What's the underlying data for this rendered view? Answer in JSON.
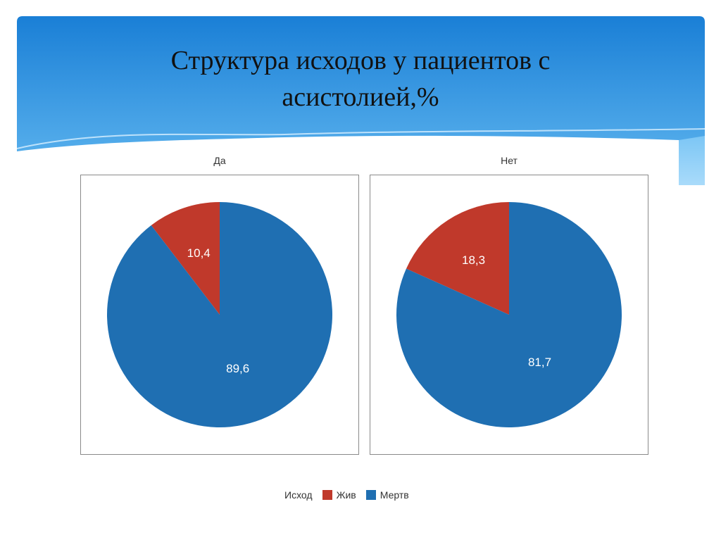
{
  "slide": {
    "title_line1": "Структура исходов у пациентов с",
    "title_line2": "асистолией,%"
  },
  "colors": {
    "header_top": "#1a7fd6",
    "header_bottom": "#62b8f0",
    "live": "#c0392b",
    "dead": "#1f6fb2"
  },
  "chart_data": [
    {
      "type": "pie",
      "title": "Да",
      "slices": [
        {
          "name": "Жив",
          "value": 10.4,
          "label": "10,4"
        },
        {
          "name": "Мертв",
          "value": 89.6,
          "label": "89,6"
        }
      ]
    },
    {
      "type": "pie",
      "title": "Нет",
      "slices": [
        {
          "name": "Жив",
          "value": 18.3,
          "label": "18,3"
        },
        {
          "name": "Мертв",
          "value": 81.7,
          "label": "81,7"
        }
      ]
    }
  ],
  "legend": {
    "title": "Исход",
    "items": [
      {
        "name": "Жив",
        "color": "#c0392b"
      },
      {
        "name": "Мертв",
        "color": "#1f6fb2"
      }
    ]
  }
}
